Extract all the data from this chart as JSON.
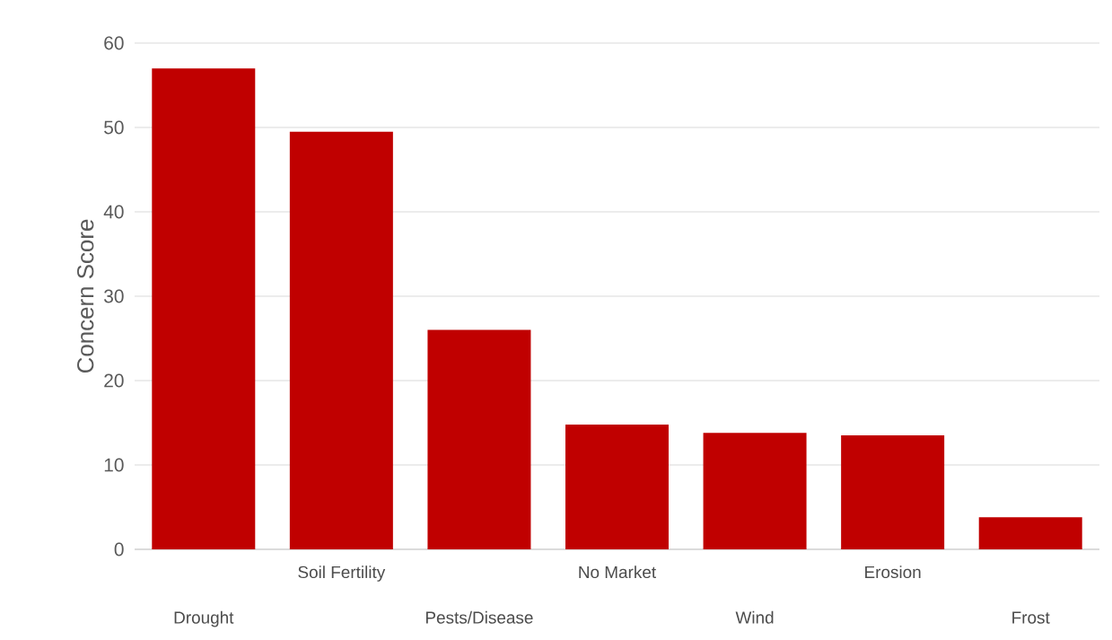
{
  "chart_data": {
    "type": "bar",
    "ylabel": "Concern Score",
    "categories": [
      "Drought",
      "Soil Fertility",
      "Pests/Disease",
      "No Market",
      "Wind",
      "Erosion",
      "Frost"
    ],
    "values": [
      57.0,
      49.5,
      26.0,
      14.8,
      13.8,
      13.5,
      3.8
    ],
    "color": "#c00000",
    "ylim": [
      0,
      60
    ],
    "yticks": [
      0,
      10,
      20,
      30,
      40,
      50,
      60
    ],
    "grid": "y"
  }
}
